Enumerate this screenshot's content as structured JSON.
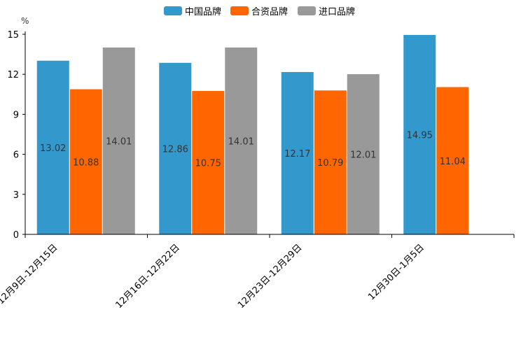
{
  "chart_data": {
    "type": "bar",
    "title": "",
    "ylabel": "%",
    "xlabel": "",
    "ylim": [
      0,
      15
    ],
    "yticks": [
      "0",
      "3",
      "6",
      "9",
      "12",
      "15"
    ],
    "legend_position": "top-center",
    "categories": [
      "12月9日-12月15日",
      "12月16日-12月22日",
      "12月23日-12月29日",
      "12月30日-1月5日"
    ],
    "series": [
      {
        "name": "中国品牌",
        "color": "#3399cc",
        "values": [
          13.02,
          12.86,
          12.17,
          14.95
        ],
        "labels": [
          "13.02",
          "12.86",
          "12.17",
          "14.95"
        ]
      },
      {
        "name": "合资品牌",
        "color": "#ff6600",
        "values": [
          10.88,
          10.75,
          10.79,
          11.04
        ],
        "labels": [
          "10.88",
          "10.75",
          "10.79",
          "11.04"
        ]
      },
      {
        "name": "进口品牌",
        "color": "#999999",
        "values": [
          14.01,
          14.01,
          12.01,
          null
        ],
        "labels": [
          "14.01",
          "14.01",
          "12.01",
          ""
        ]
      }
    ]
  }
}
